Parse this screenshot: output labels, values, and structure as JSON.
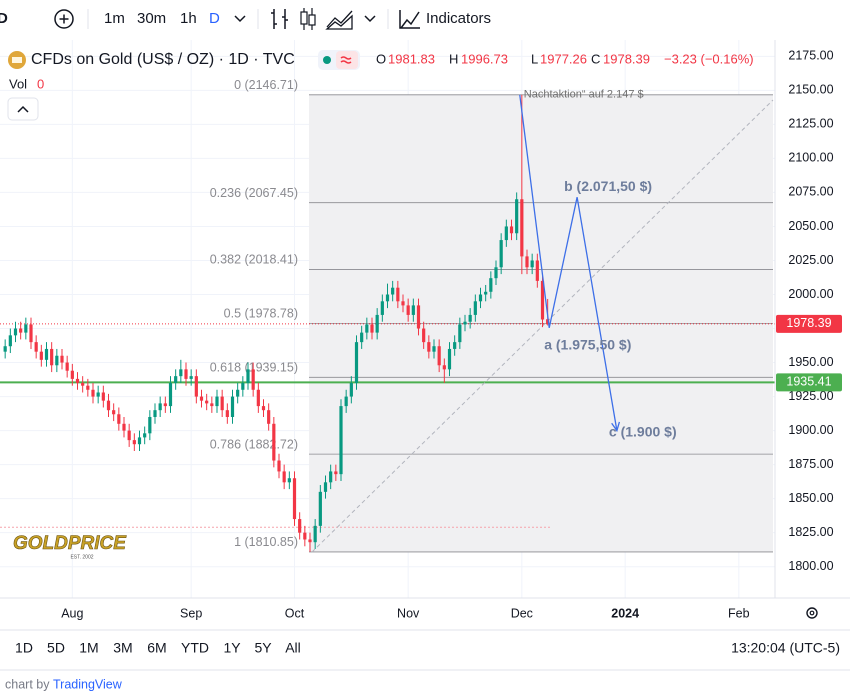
{
  "toolbar": {
    "intervals": [
      "1m",
      "30m",
      "1h",
      "D"
    ],
    "indicators": "Indicators"
  },
  "header": {
    "symbol": "D"
  },
  "legend": {
    "title": "CFDs on Gold (US$ / OZ) · 1D · TVC",
    "o": "O",
    "h": "H",
    "l": "L",
    "c": "C",
    "change": "−3.23 (−0.16%)",
    "vol": "Vol",
    "vol_value": 0
  },
  "logo": {
    "name": "GOLDPRICE",
    "est": "EST. 2002"
  },
  "chart_data": {
    "type": "candlestick",
    "up_color": "#089981",
    "down_color": "#f23645",
    "open": [
      1958,
      1962,
      1970,
      1975,
      1972,
      1978,
      1965,
      1958,
      1952,
      1960,
      1948,
      1955,
      1950,
      1944,
      1938,
      1935,
      1933,
      1930,
      1925,
      1928,
      1922,
      1915,
      1912,
      1905,
      1900,
      1893,
      1890,
      1895,
      1898,
      1910,
      1915,
      1920,
      1918,
      1935,
      1940,
      1945,
      1938,
      1940,
      1925,
      1922,
      1920,
      1918,
      1925,
      1915,
      1910,
      1925,
      1930,
      1935,
      1945,
      1930,
      1918,
      1915,
      1905,
      1878,
      1870,
      1862,
      1865,
      1835,
      1825,
      1820,
      1818,
      1830,
      1855,
      1862,
      1870,
      1868,
      1918,
      1925,
      1935,
      1965,
      1972,
      1978,
      1972,
      1985,
      1995,
      2000,
      2005,
      1995,
      1992,
      1985,
      1992,
      1975,
      1965,
      1958,
      1962,
      1948,
      1945,
      1960,
      1965,
      1978,
      1980,
      1985,
      1995,
      2000,
      2002,
      2012,
      2020,
      2040,
      2050,
      2045,
      2070,
      2028,
      2020,
      2025,
      2010,
      1981.83
    ],
    "high": [
      1967,
      1975,
      1980,
      1980,
      1983,
      1983,
      1970,
      1963,
      1965,
      1965,
      1960,
      1960,
      1955,
      1949,
      1943,
      1940,
      1938,
      1935,
      1933,
      1933,
      1927,
      1920,
      1917,
      1910,
      1905,
      1898,
      1900,
      1903,
      1915,
      1920,
      1925,
      1925,
      1940,
      1945,
      1952,
      1950,
      1945,
      1945,
      1930,
      1927,
      1925,
      1930,
      1930,
      1920,
      1930,
      1935,
      1940,
      1950,
      1950,
      1935,
      1923,
      1920,
      1910,
      1883,
      1875,
      1870,
      1870,
      1840,
      1830,
      1825,
      1835,
      1860,
      1867,
      1875,
      1875,
      1923,
      1930,
      1940,
      1970,
      1977,
      1983,
      1983,
      1990,
      2000,
      2008,
      2010,
      2010,
      2000,
      1997,
      1997,
      1997,
      1980,
      1970,
      1967,
      1967,
      1953,
      1965,
      1970,
      1983,
      1985,
      1990,
      2000,
      2005,
      2007,
      2017,
      2025,
      2045,
      2055,
      2055,
      2075,
      2146.71,
      2033,
      2030,
      2030,
      2015,
      1996.73
    ],
    "low": [
      1953,
      1957,
      1965,
      1967,
      1967,
      1960,
      1953,
      1947,
      1947,
      1943,
      1943,
      1945,
      1939,
      1933,
      1930,
      1928,
      1925,
      1920,
      1920,
      1917,
      1910,
      1907,
      1900,
      1895,
      1888,
      1885,
      1885,
      1890,
      1893,
      1905,
      1910,
      1913,
      1913,
      1930,
      1935,
      1933,
      1933,
      1920,
      1917,
      1915,
      1913,
      1913,
      1910,
      1905,
      1905,
      1920,
      1925,
      1930,
      1925,
      1913,
      1910,
      1900,
      1873,
      1865,
      1857,
      1857,
      1830,
      1820,
      1815,
      1810.85,
      1813,
      1825,
      1850,
      1857,
      1863,
      1863,
      1913,
      1920,
      1930,
      1960,
      1967,
      1967,
      1967,
      1980,
      1990,
      1995,
      1990,
      1987,
      1980,
      1980,
      1970,
      1960,
      1953,
      1953,
      1943,
      1935,
      1940,
      1955,
      1960,
      1973,
      1975,
      1980,
      1990,
      1995,
      1997,
      2007,
      2015,
      2035,
      2040,
      2040,
      2015,
      2015,
      2015,
      2005,
      1976,
      1977.26
    ],
    "close": [
      1962,
      1970,
      1975,
      1972,
      1978,
      1965,
      1958,
      1952,
      1960,
      1948,
      1955,
      1950,
      1944,
      1938,
      1935,
      1933,
      1930,
      1925,
      1928,
      1922,
      1915,
      1912,
      1905,
      1900,
      1893,
      1890,
      1895,
      1898,
      1910,
      1915,
      1920,
      1918,
      1935,
      1940,
      1945,
      1938,
      1940,
      1925,
      1922,
      1920,
      1918,
      1925,
      1915,
      1910,
      1925,
      1930,
      1935,
      1945,
      1930,
      1918,
      1915,
      1905,
      1878,
      1870,
      1862,
      1865,
      1835,
      1825,
      1820,
      1818,
      1830,
      1855,
      1862,
      1870,
      1868,
      1918,
      1925,
      1935,
      1965,
      1972,
      1978,
      1972,
      1985,
      1995,
      2000,
      2005,
      1995,
      1992,
      1985,
      1992,
      1975,
      1965,
      1958,
      1962,
      1948,
      1945,
      1960,
      1965,
      1978,
      1980,
      1985,
      1995,
      2000,
      2002,
      2012,
      2020,
      2040,
      2050,
      2045,
      2070,
      2028,
      2020,
      2025,
      2010,
      1981.62,
      1978.39
    ],
    "xlim": [
      0,
      150
    ],
    "xticks": [
      {
        "value": 14,
        "label": "Aug"
      },
      {
        "value": 37,
        "label": "Sep"
      },
      {
        "value": 57,
        "label": "Oct"
      },
      {
        "value": 79,
        "label": "Nov"
      },
      {
        "value": 101,
        "label": "Dec"
      },
      {
        "value": 121,
        "label": "2024"
      },
      {
        "value": 143,
        "label": "Feb"
      }
    ],
    "ylim": [
      1777,
      2187
    ],
    "yticks": [
      {
        "value": 1800,
        "label": "1800.00"
      },
      {
        "value": 1825,
        "label": "1825.00"
      },
      {
        "value": 1850,
        "label": "1850.00"
      },
      {
        "value": 1875,
        "label": "1875.00"
      },
      {
        "value": 1900,
        "label": "1900.00"
      },
      {
        "value": 1925,
        "label": "1925.00"
      },
      {
        "value": 1950,
        "label": "1950.00"
      },
      {
        "value": 1975,
        "label": "1975.00"
      },
      {
        "value": 2000,
        "label": "2000.00"
      },
      {
        "value": 2025,
        "label": "2025.00"
      },
      {
        "value": 2050,
        "label": "2050.00"
      },
      {
        "value": 2075,
        "label": "2075.00"
      },
      {
        "value": 2100,
        "label": "2100.00"
      },
      {
        "value": 2125,
        "label": "2125.00"
      },
      {
        "value": 2150,
        "label": "2150.00"
      },
      {
        "value": 2175,
        "label": "2175.00"
      }
    ],
    "grid": true,
    "fib": [
      {
        "value": 2146.71,
        "label": "0 (2146.71)"
      },
      {
        "value": 2067.45,
        "label": "0.236 (2067.45)"
      },
      {
        "value": 2018.41,
        "label": "0.382 (2018.41)"
      },
      {
        "value": 1978.78,
        "label": "0.5 (1978.78)"
      },
      {
        "value": 1939.15,
        "label": "0.618 (1939.15)"
      },
      {
        "value": 1882.72,
        "label": "0.786 (1882.72)"
      },
      {
        "value": 1810.85,
        "label": "1 (1810.85)"
      }
    ],
    "hlines": [
      {
        "value": 1935.41,
        "color": "#4caf50"
      },
      {
        "value": 1829,
        "color": "#f5a3ab"
      }
    ],
    "waves": [
      {
        "x": 100.6,
        "value": 2146.71,
        "label": "Nachtaktion“ auf 2.147 $"
      },
      {
        "x": 106.3,
        "value": 1975.5,
        "label": "a (1.975,50 $)"
      },
      {
        "x": 111.7,
        "value": 2071.5,
        "label": "b (2.071,50 $)"
      },
      {
        "x": 119.4,
        "value": 1900,
        "label": "c (1.900 $)"
      }
    ],
    "wave_color": "#3d6fe8"
  },
  "ranges": [
    "1D",
    "5D",
    "1M",
    "3M",
    "6M",
    "YTD",
    "1Y",
    "5Y",
    "All"
  ],
  "clock": "13:20:04 (UTC-5)",
  "credit": {
    "prefix": "chart by",
    "brand": "TradingView"
  }
}
